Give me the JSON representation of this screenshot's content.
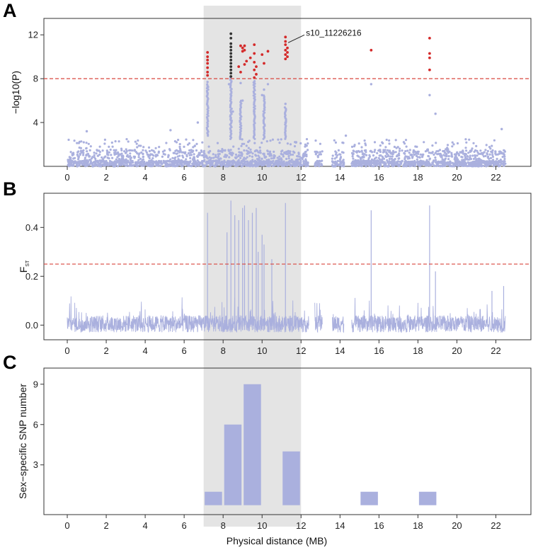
{
  "figure": {
    "panel_labels": [
      "A",
      "B",
      "C"
    ],
    "shared_xlabel": "Physical distance (MB)",
    "highlight_region_mb": [
      7.0,
      12.0
    ],
    "colors": {
      "points": "#aab0de",
      "significant": "#d42a2a",
      "lead_snp": "#333333",
      "threshold": "#d9473f",
      "highlight": "#e4e4e4",
      "bars": "#aab0de"
    }
  },
  "chart_data": [
    {
      "type": "scatter",
      "panel": "A",
      "title": "",
      "xlabel": "",
      "ylabel": "−log10(P)",
      "xlim": [
        -1.2,
        23.8
      ],
      "ylim": [
        0,
        13.5
      ],
      "xticks": [
        0,
        2,
        4,
        6,
        8,
        10,
        12,
        14,
        16,
        18,
        20,
        22
      ],
      "yticks": [
        4,
        8,
        12
      ],
      "threshold": 8,
      "annotation": {
        "text": "s10_11226216",
        "x": 11.23,
        "y": 11.8
      },
      "background_range": [
        0,
        22.5
      ],
      "background_max": 2.5,
      "significant_points": [
        [
          7.2,
          10.4
        ],
        [
          7.2,
          10.0
        ],
        [
          7.2,
          9.7
        ],
        [
          7.2,
          9.4
        ],
        [
          7.2,
          9.0
        ],
        [
          7.2,
          8.6
        ],
        [
          7.2,
          8.3
        ],
        [
          8.9,
          11.0
        ],
        [
          9.0,
          10.8
        ],
        [
          9.0,
          10.5
        ],
        [
          9.1,
          11.0
        ],
        [
          9.1,
          10.6
        ],
        [
          9.2,
          9.6
        ],
        [
          9.1,
          9.3
        ],
        [
          8.8,
          9.1
        ],
        [
          8.9,
          8.6
        ],
        [
          9.4,
          9.9
        ],
        [
          9.6,
          11.1
        ],
        [
          9.6,
          10.3
        ],
        [
          9.6,
          9.5
        ],
        [
          9.7,
          9.1
        ],
        [
          9.6,
          8.8
        ],
        [
          9.7,
          8.4
        ],
        [
          9.6,
          8.1
        ],
        [
          10.0,
          10.2
        ],
        [
          10.3,
          10.5
        ],
        [
          10.1,
          9.4
        ],
        [
          11.2,
          11.8
        ],
        [
          11.2,
          11.4
        ],
        [
          11.2,
          11.1
        ],
        [
          11.3,
          10.8
        ],
        [
          11.2,
          10.6
        ],
        [
          11.3,
          10.4
        ],
        [
          11.2,
          10.2
        ],
        [
          11.3,
          10.0
        ],
        [
          11.2,
          9.8
        ],
        [
          15.6,
          10.6
        ],
        [
          18.6,
          11.7
        ],
        [
          18.6,
          10.3
        ],
        [
          18.6,
          9.9
        ],
        [
          18.6,
          8.8
        ]
      ],
      "lead_points": [
        [
          8.4,
          12.1
        ],
        [
          8.4,
          11.7
        ],
        [
          8.4,
          11.2
        ],
        [
          8.4,
          10.9
        ],
        [
          8.4,
          10.6
        ],
        [
          8.4,
          10.3
        ],
        [
          8.4,
          10.0
        ],
        [
          8.4,
          9.7
        ],
        [
          8.4,
          9.4
        ],
        [
          8.4,
          9.1
        ],
        [
          8.4,
          8.8
        ],
        [
          8.4,
          8.5
        ],
        [
          8.4,
          8.2
        ]
      ],
      "elevated_points": [
        [
          6.7,
          4.0
        ],
        [
          7.2,
          7.7
        ],
        [
          7.2,
          7.2
        ],
        [
          7.2,
          6.7
        ],
        [
          8.3,
          7.5
        ],
        [
          8.4,
          6.5
        ],
        [
          8.5,
          5.0
        ],
        [
          8.4,
          4.2
        ],
        [
          8.9,
          7.6
        ],
        [
          9.0,
          6.0
        ],
        [
          9.6,
          7.6
        ],
        [
          9.6,
          6.2
        ],
        [
          9.6,
          5.0
        ],
        [
          10.1,
          7.0
        ],
        [
          10.0,
          6.5
        ],
        [
          10.3,
          7.5
        ],
        [
          11.2,
          5.7
        ],
        [
          11.2,
          4.0
        ],
        [
          15.6,
          7.5
        ],
        [
          18.6,
          6.5
        ],
        [
          18.9,
          4.8
        ],
        [
          14.3,
          2.8
        ],
        [
          1.0,
          3.2
        ],
        [
          5.3,
          3.3
        ],
        [
          22.3,
          3.4
        ]
      ]
    },
    {
      "type": "line",
      "panel": "B",
      "title": "",
      "xlabel": "",
      "ylabel": "F",
      "ylabel_subscript": "ST",
      "xlim": [
        -1.2,
        23.8
      ],
      "ylim": [
        -0.06,
        0.54
      ],
      "xticks": [
        0,
        2,
        4,
        6,
        8,
        10,
        12,
        14,
        16,
        18,
        20,
        22
      ],
      "yticks": [
        0.0,
        0.2,
        0.4
      ],
      "ytick_labels": [
        "0.0",
        "0.2",
        "0.4"
      ],
      "threshold": 0.25,
      "peaks": [
        [
          7.2,
          0.46
        ],
        [
          8.2,
          0.38
        ],
        [
          8.4,
          0.51
        ],
        [
          8.6,
          0.45
        ],
        [
          8.8,
          0.43
        ],
        [
          9.0,
          0.48
        ],
        [
          9.1,
          0.49
        ],
        [
          9.3,
          0.43
        ],
        [
          9.5,
          0.46
        ],
        [
          9.7,
          0.48
        ],
        [
          9.8,
          0.3
        ],
        [
          10.0,
          0.37
        ],
        [
          10.1,
          0.33
        ],
        [
          10.5,
          0.27
        ],
        [
          11.2,
          0.5
        ],
        [
          15.6,
          0.47
        ],
        [
          18.6,
          0.49
        ],
        [
          18.9,
          0.22
        ],
        [
          21.8,
          0.14
        ],
        [
          22.4,
          0.16
        ]
      ],
      "background_range": [
        0,
        22.5
      ]
    },
    {
      "type": "bar",
      "panel": "C",
      "title": "",
      "xlabel": "Physical distance (MB)",
      "ylabel": "Sex−specific SNP number",
      "xlim": [
        -1.2,
        23.8
      ],
      "ylim": [
        -0.7,
        10.2
      ],
      "xticks": [
        0,
        2,
        4,
        6,
        8,
        10,
        12,
        14,
        16,
        18,
        20,
        22
      ],
      "yticks": [
        3,
        6,
        9
      ],
      "bins": [
        {
          "x0": 7.0,
          "x1": 8.0,
          "value": 1
        },
        {
          "x0": 8.0,
          "x1": 9.0,
          "value": 6
        },
        {
          "x0": 9.0,
          "x1": 10.0,
          "value": 9
        },
        {
          "x0": 11.0,
          "x1": 12.0,
          "value": 4
        },
        {
          "x0": 15.0,
          "x1": 16.0,
          "value": 1
        },
        {
          "x0": 18.0,
          "x1": 19.0,
          "value": 1
        }
      ]
    }
  ]
}
